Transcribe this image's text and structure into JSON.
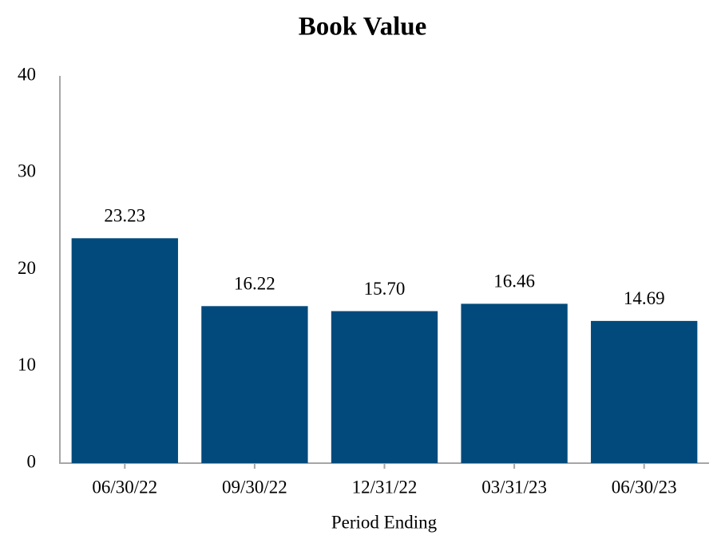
{
  "chart_data": {
    "type": "bar",
    "title": "Book Value",
    "x_label": "Period Ending",
    "categories": [
      "06/30/22",
      "09/30/22",
      "12/31/22",
      "03/31/23",
      "06/30/23"
    ],
    "values": [
      23.23,
      16.22,
      15.7,
      16.46,
      14.69
    ],
    "value_labels": [
      "23.23",
      "16.22",
      "15.70",
      "16.46",
      "14.69"
    ],
    "color": "#024a7c",
    "ylim": [
      0,
      40
    ],
    "yticks": [
      0,
      10,
      20,
      30,
      40
    ],
    "grid": false
  }
}
